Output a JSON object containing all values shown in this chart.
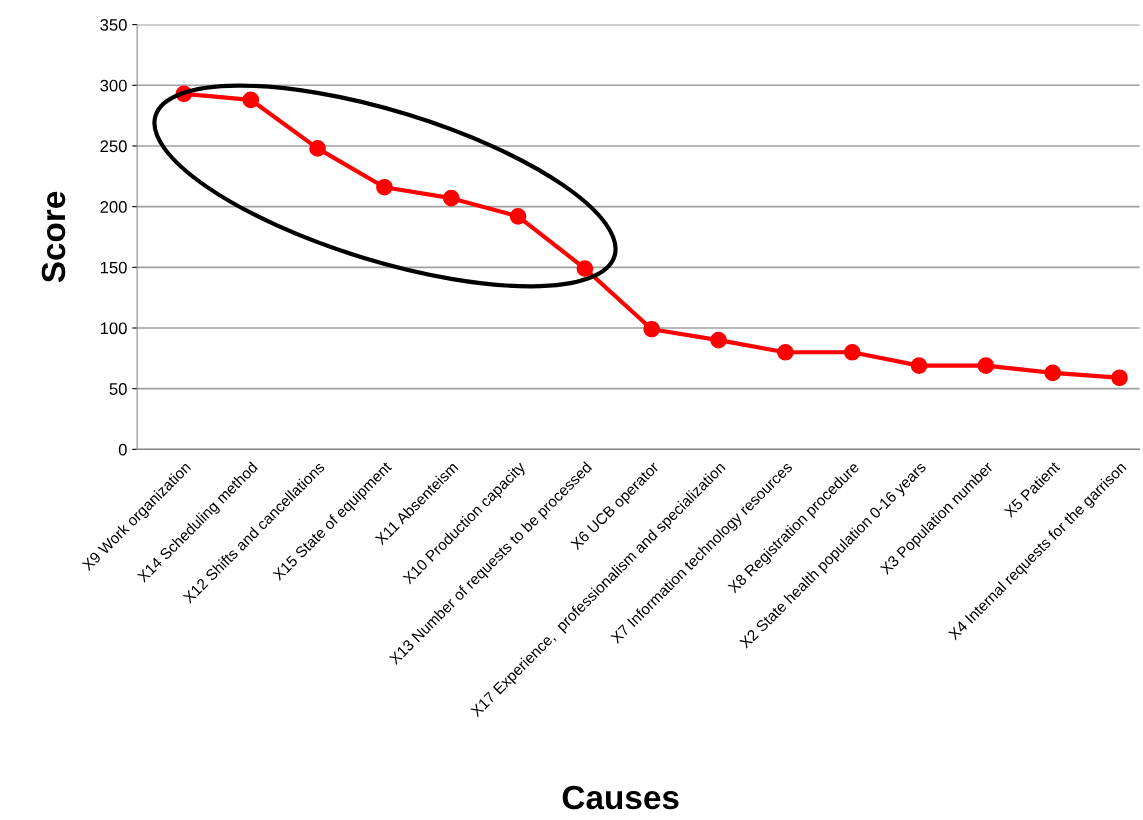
{
  "chart_data": {
    "type": "line",
    "xlabel": "Causes",
    "ylabel": "Score",
    "categories": [
      "X9 Work organization",
      "X14 Scheduling method",
      "X12 Shifts and cancellations",
      "X15 State of equipment",
      "X11 Absenteism",
      "X10 Production capacity",
      "X13 Number of requests to be processed",
      "X6 UCB operator",
      "X17 Experience,  professionalism and specialization",
      "X7 Information technology resources",
      "X8 Registration procedure",
      "X2 State health population 0-16 years",
      "X3 Population number",
      "X5 Patient",
      "X4 Internal requests for the garrison"
    ],
    "series": [
      {
        "color": "#ff0000",
        "values": [
          293,
          288,
          248,
          216,
          207,
          192,
          149,
          99,
          90,
          80,
          80,
          69,
          69,
          63,
          59
        ]
      }
    ],
    "ylim": [
      0,
      350
    ],
    "yticks": [
      0,
      50,
      100,
      150,
      200,
      250,
      300,
      350
    ],
    "grid": "y",
    "marker": "circle",
    "line_style": "solid"
  }
}
